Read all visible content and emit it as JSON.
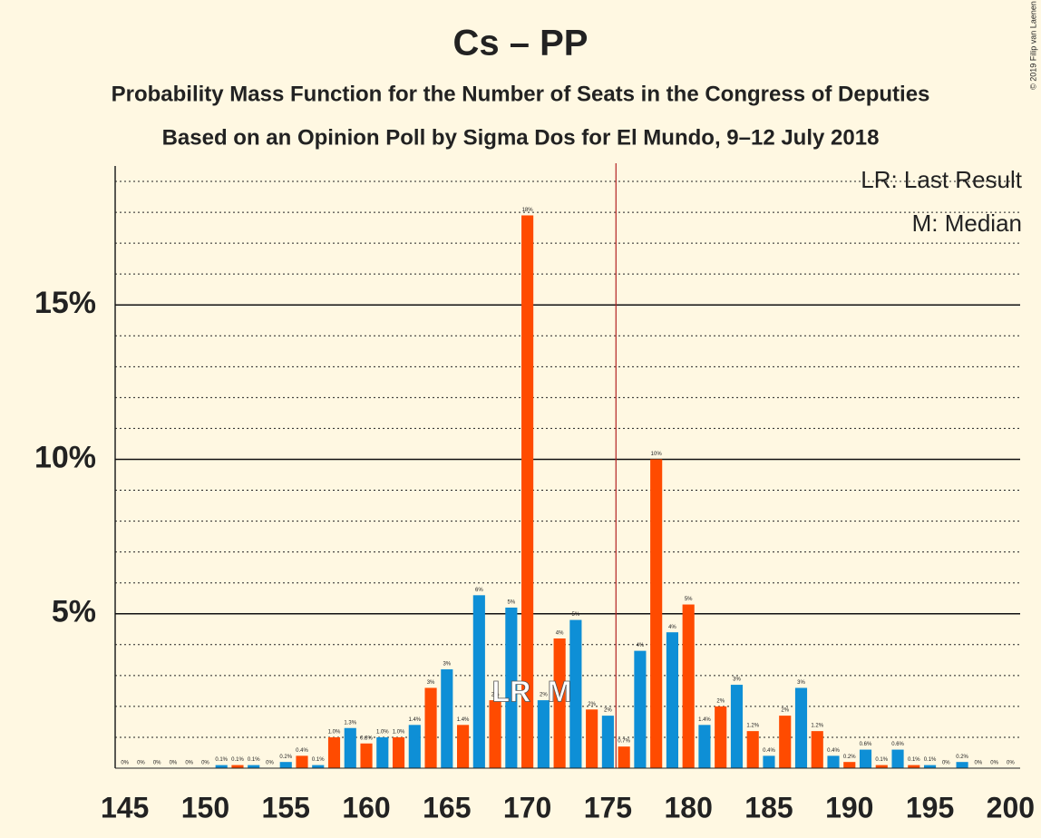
{
  "chart_data": {
    "type": "bar",
    "title": "Cs – PP",
    "subtitle": "Probability Mass Function for the Number of Seats in the Congress of Deputies",
    "subtitle2": "Based on an Opinion Poll by Sigma Dos for El Mundo, 9–12 July 2018",
    "copyright": "© 2019 Filip van Laenen",
    "legend": [
      "LR: Last Result",
      "M: Median"
    ],
    "series": [
      {
        "color": "#0e8fd6",
        "x": [
          145,
          147,
          149,
          151,
          153,
          155,
          157,
          159,
          161,
          163,
          165,
          167,
          169,
          171,
          173,
          175,
          177,
          179,
          181,
          183,
          185,
          187,
          189,
          191,
          193,
          195,
          197,
          199
        ],
        "values": [
          0,
          0,
          0,
          0.1,
          0.1,
          0.2,
          0.1,
          1.3,
          1.0,
          1.4,
          3.2,
          5.6,
          5.2,
          2.2,
          4.8,
          1.7,
          3.8,
          4.4,
          1.4,
          2.7,
          0.4,
          2.6,
          0.4,
          0.6,
          0.6,
          0.1,
          0.2,
          0
        ],
        "value_labels": [
          "0%",
          "0%",
          "0%",
          "0.1%",
          "0.1%",
          "0.2%",
          "0.1%",
          "1.3%",
          "1.0%",
          "1.4%",
          "3%",
          "6%",
          "5%",
          "2%",
          "5%",
          "2%",
          "4%",
          "4%",
          "1.4%",
          "3%",
          "0.4%",
          "3%",
          "0.4%",
          "0.6%",
          "0.6%",
          "0.1%",
          "0.2%",
          "0%"
        ]
      },
      {
        "color": "#ff4b00",
        "x": [
          146,
          148,
          150,
          152,
          154,
          156,
          158,
          160,
          162,
          164,
          166,
          168,
          170,
          172,
          174,
          176,
          178,
          180,
          182,
          184,
          186,
          188,
          190,
          192,
          194,
          196,
          198,
          200
        ],
        "values": [
          0,
          0,
          0,
          0.1,
          0,
          0.4,
          1.0,
          0.8,
          1.0,
          2.6,
          1.4,
          2.2,
          17.9,
          4.2,
          1.9,
          0.7,
          10.0,
          5.3,
          2.0,
          1.2,
          1.7,
          1.2,
          0.2,
          0.1,
          0.1,
          0,
          0,
          0
        ],
        "value_labels": [
          "0%",
          "0%",
          "0%",
          "0.1%",
          "0%",
          "0.4%",
          "1.0%",
          "0.8%",
          "1.0%",
          "3%",
          "1.4%",
          "2%",
          "18%",
          "4%",
          "2%",
          "0.7%",
          "10%",
          "5%",
          "2%",
          "1.2%",
          "2%",
          "1.2%",
          "0.2%",
          "0.1%",
          "0.1%",
          "0%",
          "0%",
          "0%"
        ]
      }
    ],
    "annotations": [
      {
        "text": "LR",
        "x": 169
      },
      {
        "text": "M",
        "x": 172
      }
    ],
    "majority": 176,
    "majority_color": "#b22222",
    "xlim": [
      144.4,
      200.6
    ],
    "xticks": [
      145,
      150,
      155,
      160,
      165,
      170,
      175,
      180,
      185,
      190,
      195,
      200
    ],
    "ylim": [
      0,
      19.5
    ],
    "yticks": [
      {
        "value": 5,
        "label": "5%"
      },
      {
        "value": 10,
        "label": "10%"
      },
      {
        "value": 15,
        "label": "15%"
      }
    ],
    "minor_yticks": [
      1,
      2,
      3,
      4,
      6,
      7,
      8,
      9,
      11,
      12,
      13,
      14,
      16,
      17,
      18,
      19
    ]
  }
}
